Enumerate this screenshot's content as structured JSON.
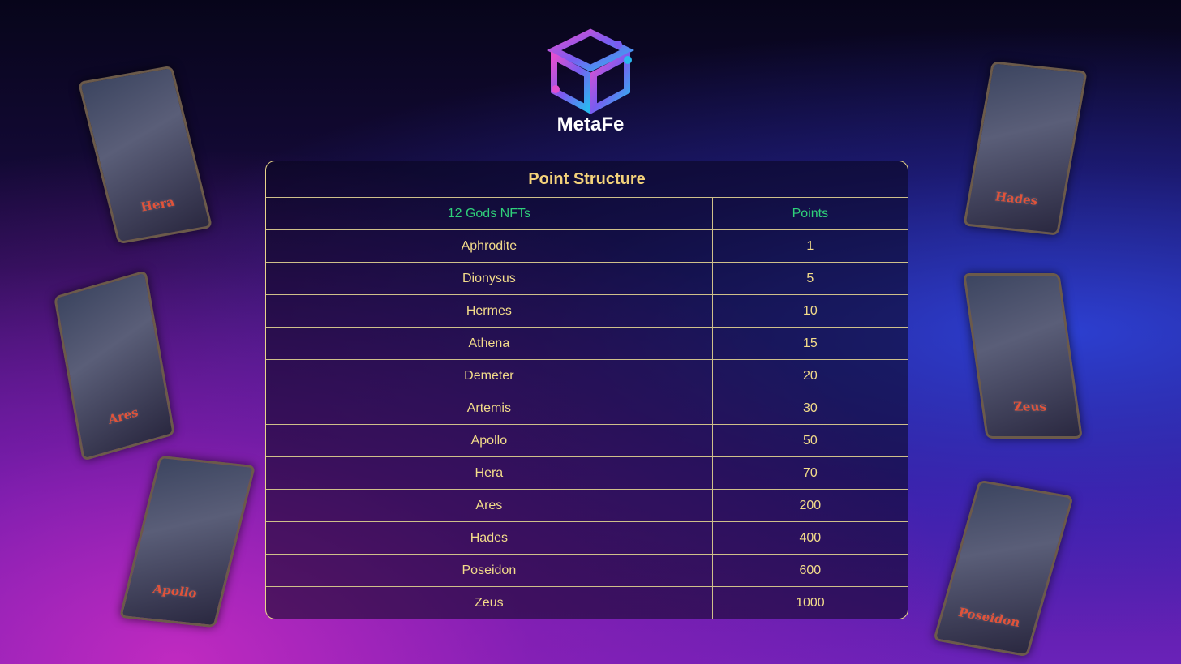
{
  "brand": "MetaFe",
  "cards": [
    "Hera",
    "Ares",
    "Apollo",
    "Hades",
    "Zeus",
    "Poseidon"
  ],
  "table": {
    "title": "Point Structure",
    "headers": [
      "12 Gods NFTs",
      "Points"
    ],
    "rows": [
      [
        "Aphrodite",
        1
      ],
      [
        "Dionysus",
        5
      ],
      [
        "Hermes",
        10
      ],
      [
        "Athena",
        15
      ],
      [
        "Demeter",
        20
      ],
      [
        "Artemis",
        30
      ],
      [
        "Apollo",
        50
      ],
      [
        "Hera",
        70
      ],
      [
        "Ares",
        200
      ],
      [
        "Hades",
        400
      ],
      [
        "Poseidon",
        600
      ],
      [
        "Zeus",
        1000
      ]
    ]
  }
}
